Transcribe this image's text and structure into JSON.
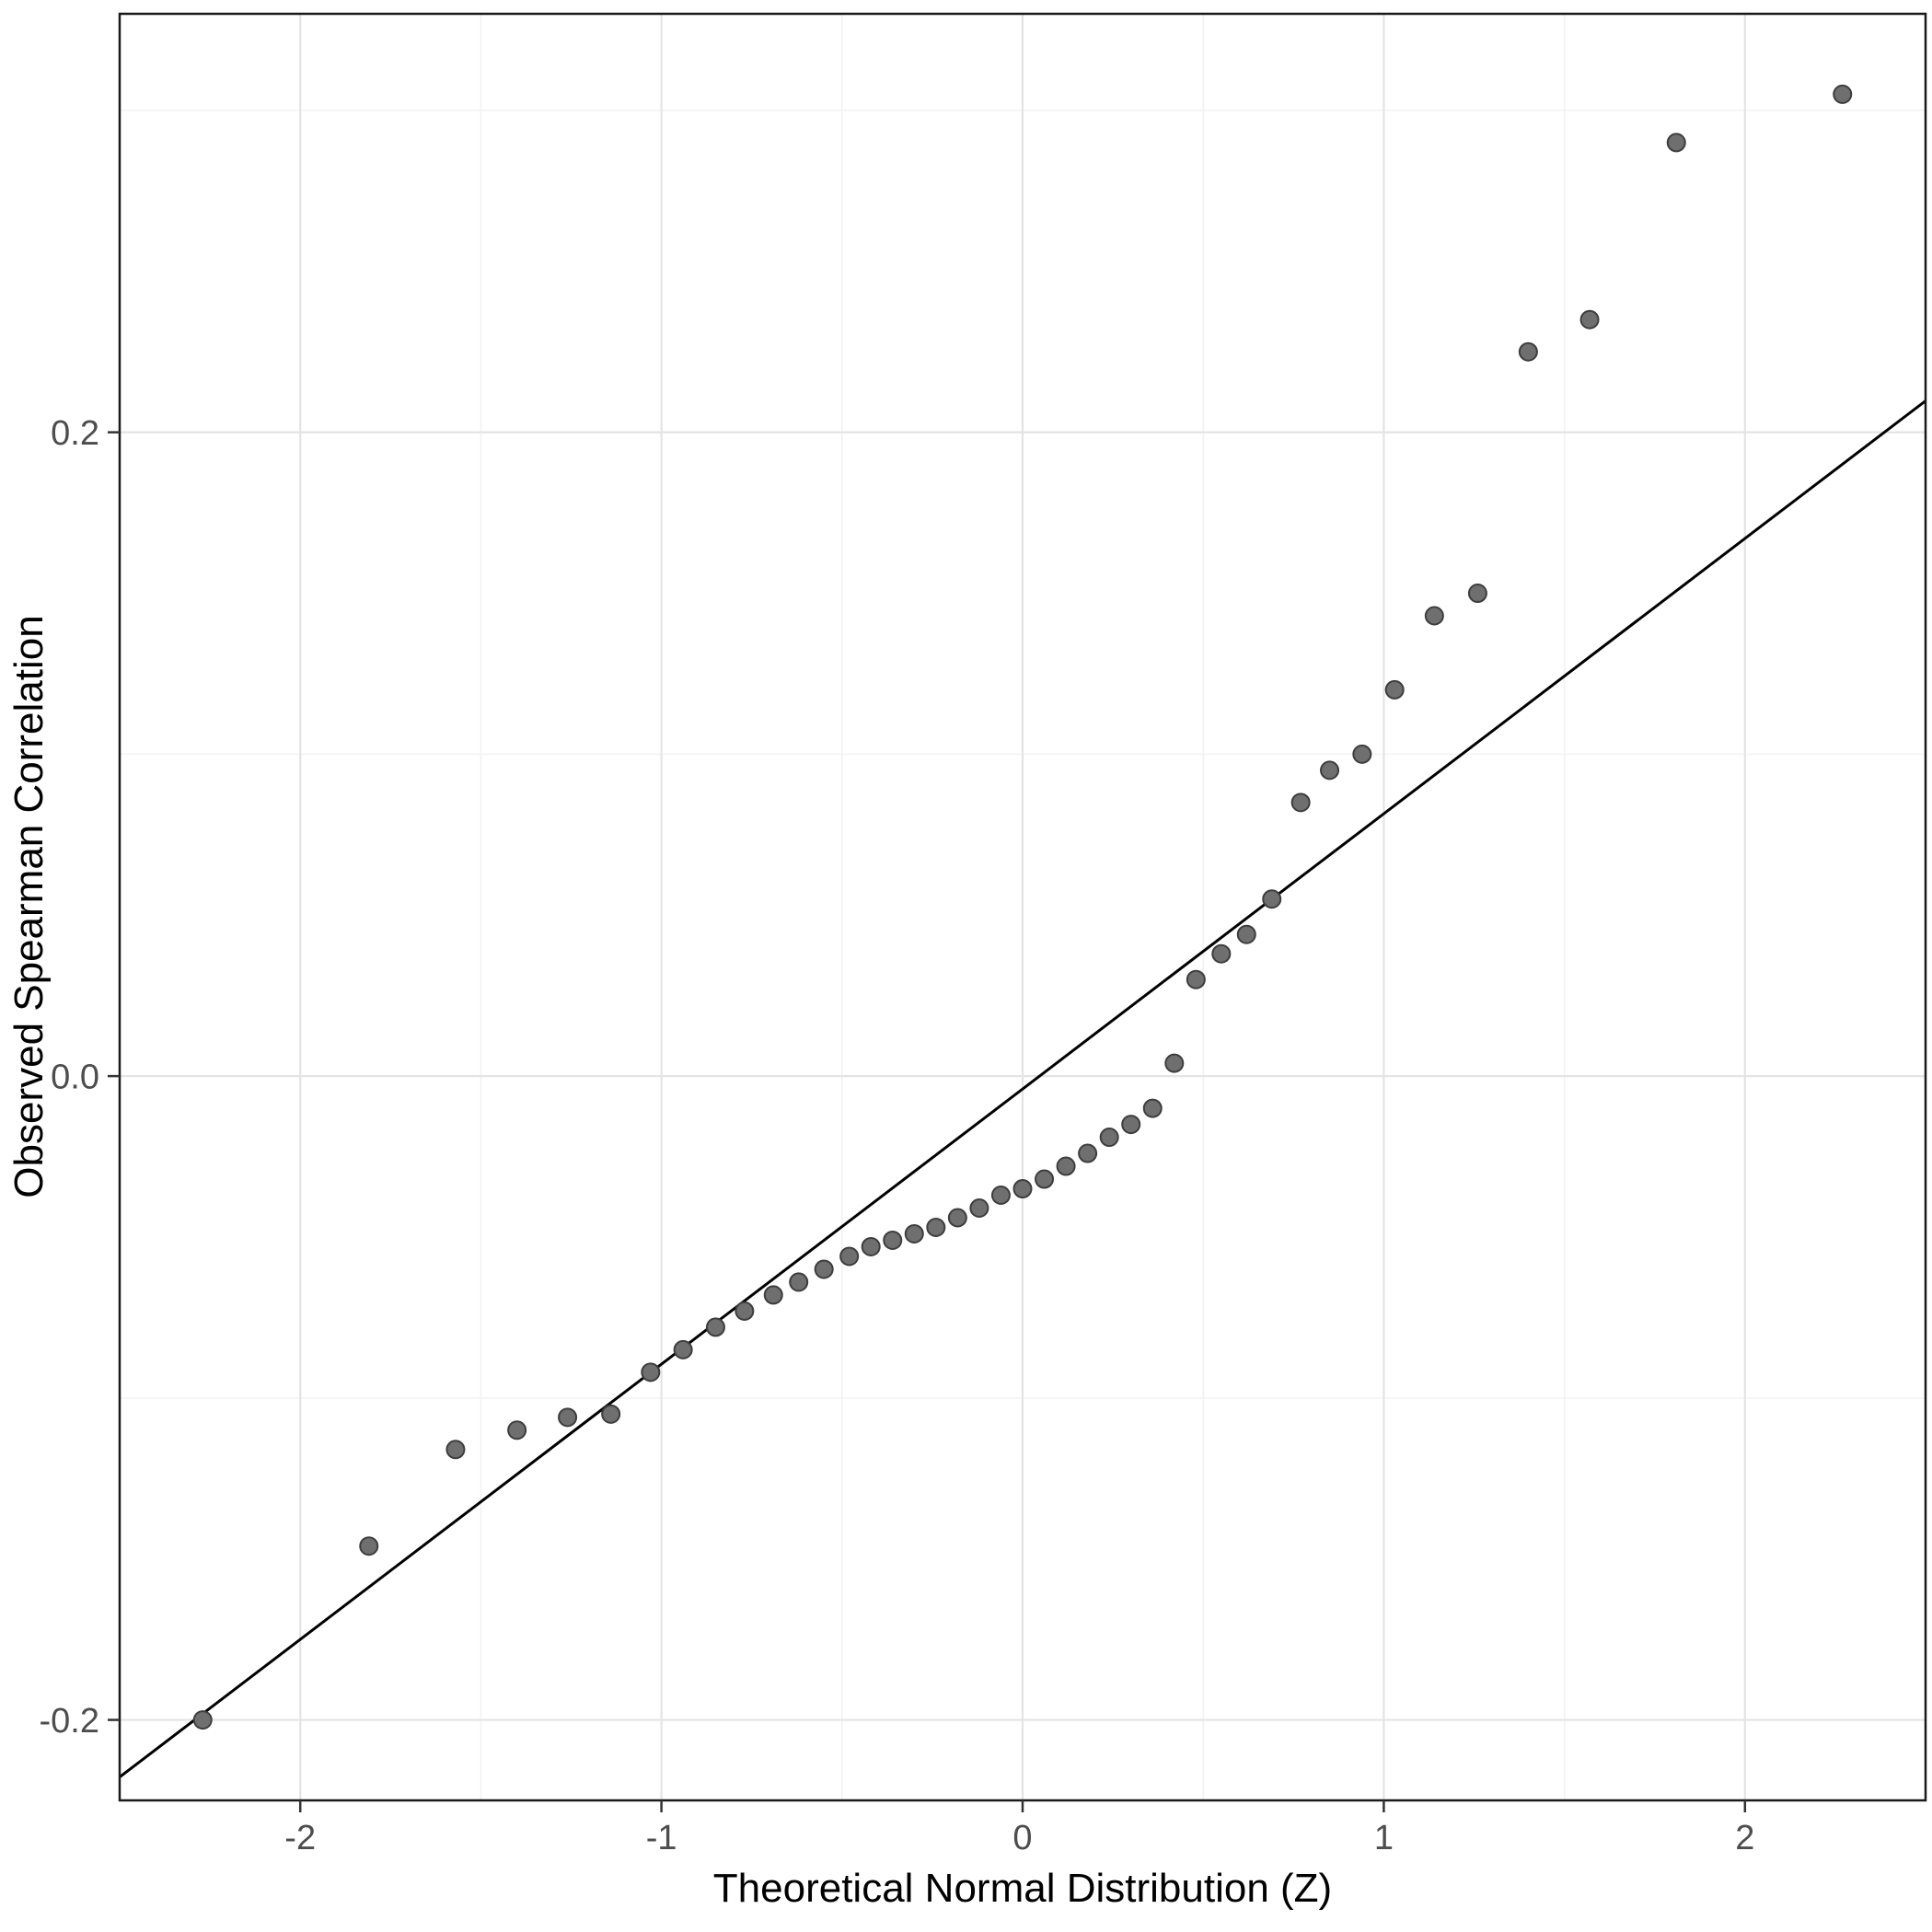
{
  "chart_data": {
    "type": "scatter",
    "title": "",
    "xlabel": "Theoretical Normal Distribution (Z)",
    "ylabel": "Observed Spearman Correlation",
    "xlim": [
      -2.5,
      2.5
    ],
    "ylim": [
      -0.225,
      0.33
    ],
    "x_major_ticks": [
      -2,
      -1,
      0,
      1,
      2
    ],
    "x_tick_labels": [
      "-2",
      "-1",
      "0",
      "1",
      "2"
    ],
    "y_major_ticks": [
      -0.2,
      0.0,
      0.2
    ],
    "y_tick_labels": [
      "-0.2",
      "0.0",
      "0.2"
    ],
    "x_minor_ticks": [
      -2.5,
      -1.5,
      -0.5,
      0.5,
      1.5,
      2.5
    ],
    "y_minor_ticks": [
      -0.1,
      0.1,
      0.3
    ],
    "grid": "major+minor",
    "legend": "none",
    "reference_line": {
      "slope": 0.0855,
      "intercept": -0.004
    },
    "points": [
      [
        -2.27,
        -0.2
      ],
      [
        -1.81,
        -0.146
      ],
      [
        -1.57,
        -0.116
      ],
      [
        -1.4,
        -0.11
      ],
      [
        -1.26,
        -0.106
      ],
      [
        -1.14,
        -0.105
      ],
      [
        -1.03,
        -0.092
      ],
      [
        -0.94,
        -0.085
      ],
      [
        -0.85,
        -0.078
      ],
      [
        -0.77,
        -0.073
      ],
      [
        -0.69,
        -0.068
      ],
      [
        -0.62,
        -0.064
      ],
      [
        -0.55,
        -0.06
      ],
      [
        -0.48,
        -0.056
      ],
      [
        -0.42,
        -0.053
      ],
      [
        -0.36,
        -0.051
      ],
      [
        -0.3,
        -0.049
      ],
      [
        -0.24,
        -0.047
      ],
      [
        -0.18,
        -0.044
      ],
      [
        -0.12,
        -0.041
      ],
      [
        -0.06,
        -0.037
      ],
      [
        0.0,
        -0.035
      ],
      [
        0.06,
        -0.032
      ],
      [
        0.12,
        -0.028
      ],
      [
        0.18,
        -0.024
      ],
      [
        0.24,
        -0.019
      ],
      [
        0.3,
        -0.015
      ],
      [
        0.36,
        -0.01
      ],
      [
        0.42,
        0.004
      ],
      [
        0.48,
        0.03
      ],
      [
        0.55,
        0.038
      ],
      [
        0.62,
        0.044
      ],
      [
        0.69,
        0.055
      ],
      [
        0.77,
        0.085
      ],
      [
        0.85,
        0.095
      ],
      [
        0.94,
        0.1
      ],
      [
        1.03,
        0.12
      ],
      [
        1.14,
        0.143
      ],
      [
        1.26,
        0.15
      ],
      [
        1.4,
        0.225
      ],
      [
        1.57,
        0.235
      ],
      [
        1.81,
        0.29
      ],
      [
        2.27,
        0.305
      ]
    ]
  },
  "style": {
    "background": "#ffffff",
    "panel_background": "#ffffff",
    "panel_border": "#1a1a1a",
    "grid_major": "#e4e4e4",
    "grid_minor": "#f2f2f2",
    "point_fill": "#6f6f6f",
    "point_stroke": "#3d3d3d",
    "reference_line_color": "#000000",
    "tick_color": "#333333",
    "tick_label_color": "#4d4d4d",
    "axis_title_color": "#000000"
  }
}
